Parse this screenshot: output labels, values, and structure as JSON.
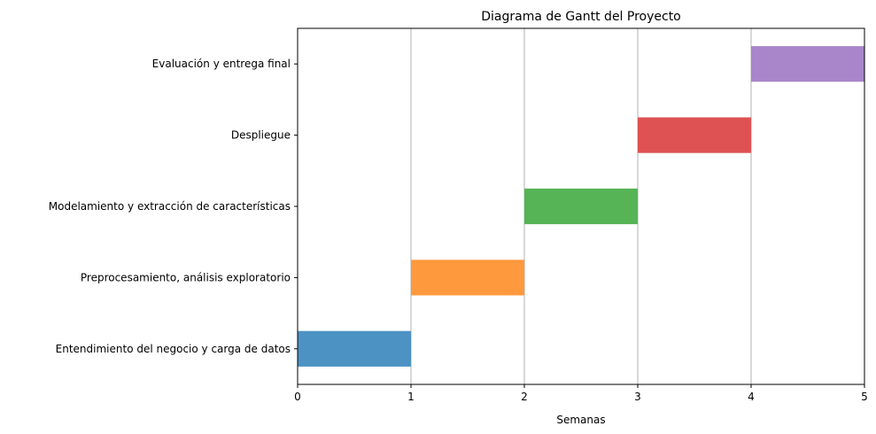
{
  "chart_data": {
    "type": "bar",
    "orientation": "horizontal",
    "title": "Diagrama de Gantt del Proyecto",
    "xlabel": "Semanas",
    "ylabel": "",
    "xlim": [
      0,
      5
    ],
    "xticks": [
      "0",
      "1",
      "2",
      "3",
      "4",
      "5"
    ],
    "grid": "vertical",
    "tasks": [
      {
        "label": "Entendimiento del negocio y carga de datos",
        "start": 0,
        "end": 1,
        "color": "#4c92c3"
      },
      {
        "label": "Preprocesamiento, análisis exploratorio",
        "start": 1,
        "end": 2,
        "color": "#ff993e"
      },
      {
        "label": "Modelamiento y extracción de características",
        "start": 2,
        "end": 3,
        "color": "#56b356"
      },
      {
        "label": "Despliegue",
        "start": 3,
        "end": 4,
        "color": "#de5253"
      },
      {
        "label": "Evaluación y entrega final",
        "start": 4,
        "end": 5,
        "color": "#a985ca"
      }
    ]
  }
}
